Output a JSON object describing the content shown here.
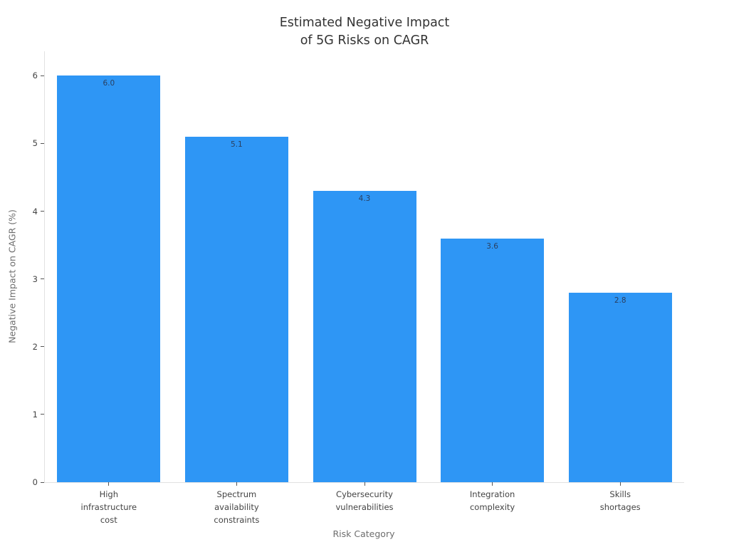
{
  "chart_data": {
    "type": "bar",
    "title": "Estimated Negative Impact\nof 5G Risks on CAGR",
    "categories": [
      "High\ninfrastructure\ncost",
      "Spectrum\navailability\nconstraints",
      "Cybersecurity\nvulnerabilities",
      "Integration\ncomplexity",
      "Skills\nshortages"
    ],
    "values": [
      6.0,
      5.1,
      4.3,
      3.6,
      2.8
    ],
    "data_labels": [
      "6.0",
      "5.1",
      "4.3",
      "3.6",
      "2.8"
    ],
    "xlabel": "Risk Category",
    "ylabel": "Negative Impact on CAGR (%)",
    "yticks": [
      0,
      1,
      2,
      3,
      4,
      5,
      6
    ],
    "ylim": [
      0,
      6.36
    ],
    "bar_color": "#2E96F5",
    "label_color": "#2a3f5f",
    "grid": false,
    "legend": "none",
    "background": "#ffffff"
  }
}
